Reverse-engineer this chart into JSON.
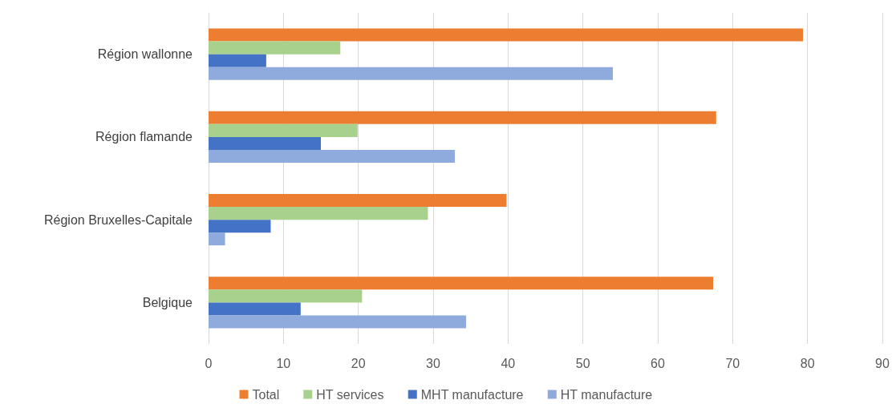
{
  "chart_data": {
    "type": "bar",
    "orientation": "horizontal",
    "categories": [
      "Région wallonne",
      "Région flamande",
      "Région Bruxelles-Capitale",
      "Belgique"
    ],
    "series": [
      {
        "name": "Total",
        "color": "#ed7d31",
        "values": [
          79.4,
          67.8,
          39.8,
          67.4
        ]
      },
      {
        "name": "HT services",
        "color": "#a9d18e",
        "values": [
          17.6,
          19.9,
          29.3,
          20.5
        ]
      },
      {
        "name": "MHT manufacture",
        "color": "#4472c4",
        "values": [
          7.7,
          15.0,
          8.3,
          12.3
        ]
      },
      {
        "name": "HT manufacture",
        "color": "#8faadc",
        "values": [
          54.0,
          32.9,
          2.2,
          34.4
        ]
      }
    ],
    "xlim": [
      0,
      90
    ],
    "xticks": [
      0,
      10,
      20,
      30,
      40,
      50,
      60,
      70,
      80,
      90
    ],
    "grid": "x",
    "legend": "bottom"
  }
}
